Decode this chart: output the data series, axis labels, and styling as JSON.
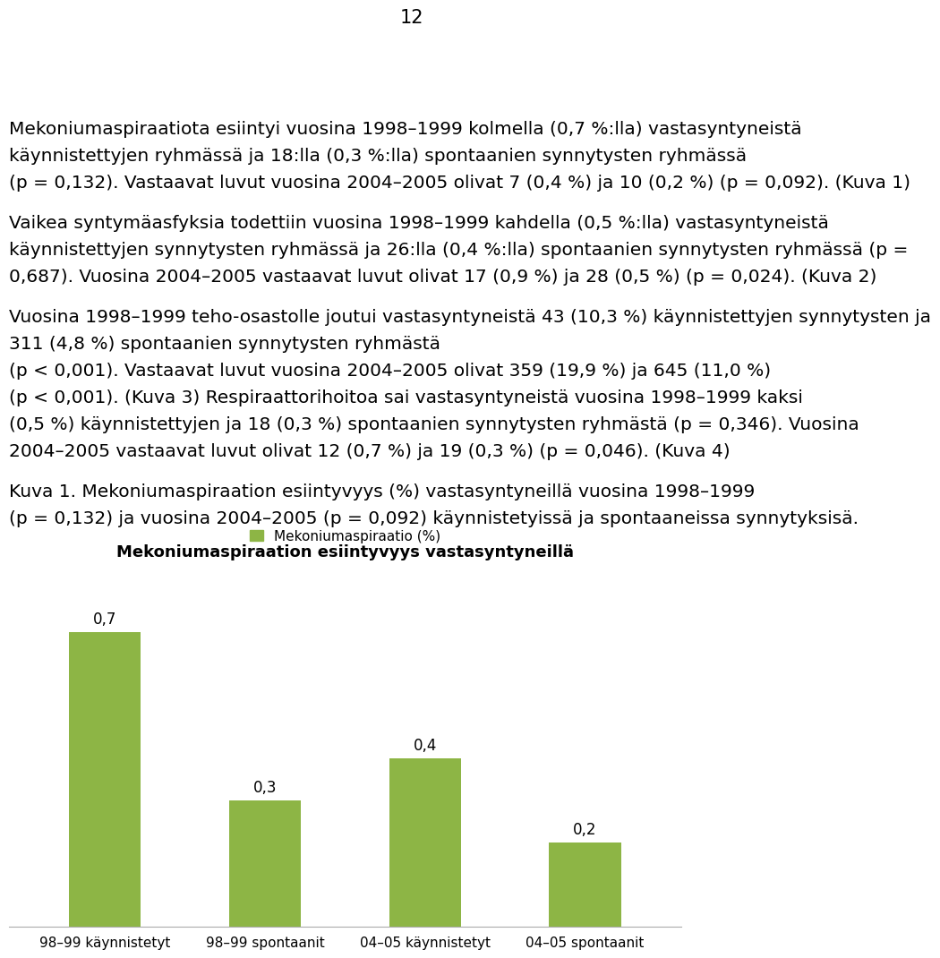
{
  "page_number": "12",
  "body_lines": [
    "Mekoniumaspiraatiota esiintyi vuosina 1998–1999 kolmella (0,7 %:lla) vastasyntyneistä",
    "käynnistettyjen ryhmässä ja 18:lla (0,3 %:lla) spontaanien synnytysten ryhmässä",
    "(p = 0,132). Vastaavat luvut vuosina 2004–2005 olivat 7 (0,4 %) ja 10 (0,2 %) (p = 0,092). (Kuva 1)",
    "",
    "Vaikea syntymäasfyksia todettiin vuosina 1998–1999 kahdella (0,5 %:lla) vastasyntyneistä",
    "käynnistettyjen synnytysten ryhmässä ja 26:lla (0,4 %:lla) spontaanien synnytysten ryhmässä (p =",
    "0,687). Vuosina 2004–2005 vastaavat luvut olivat 17 (0,9 %) ja 28 (0,5 %) (p = 0,024). (Kuva 2)",
    "",
    "Vuosina 1998–1999 teho-osastolle joutui vastasyntyneistä 43 (10,3 %) käynnistettyjen synnytysten ja",
    "311 (4,8 %) spontaanien synnytysten ryhmästä",
    "(p < 0,001). Vastaavat luvut vuosina 2004–2005 olivat 359 (19,9 %) ja 645 (11,0 %)",
    "(p < 0,001). (Kuva 3) Respiraattorihoitoa sai vastasyntyneistä vuosina 1998–1999 kaksi",
    "(0,5 %) käynnistettyjen ja 18 (0,3 %) spontaanien synnytysten ryhmästä (p = 0,346). Vuosina",
    "2004–2005 vastaavat luvut olivat 12 (0,7 %) ja 19 (0,3 %) (p = 0,046). (Kuva 4)"
  ],
  "caption_line1": "Kuva 1. Mekoniumaspiraation esiintyvyys (%) vastasyntyneillä vuosina 1998–1999",
  "caption_line2": "(p = 0,132) ja vuosina 2004–2005 (p = 0,092) käynnistetyissä ja spontaaneissa synnytyksisä.",
  "chart_title": "Mekoniumaspiraation esiintyvyys vastasyntyneillä",
  "legend_label": "Mekoniumaspiraatio (%)",
  "categories": [
    "98–99 käynnistetyt",
    "98–99 spontaanit",
    "04–05 käynnistetyt",
    "04–05 spontaanit"
  ],
  "values": [
    0.7,
    0.3,
    0.4,
    0.2
  ],
  "bar_color": "#8db545",
  "bar_labels": [
    "0,7",
    "0,3",
    "0,4",
    "0,2"
  ],
  "background_color": "#ffffff",
  "text_color": "#000000",
  "ylim": [
    0,
    0.85
  ],
  "body_fontsize": 14.5,
  "caption_fontsize": 14.5,
  "chart_title_fontsize": 13,
  "axis_label_fontsize": 11,
  "bar_label_fontsize": 12,
  "legend_fontsize": 11,
  "page_num_fontsize": 15
}
